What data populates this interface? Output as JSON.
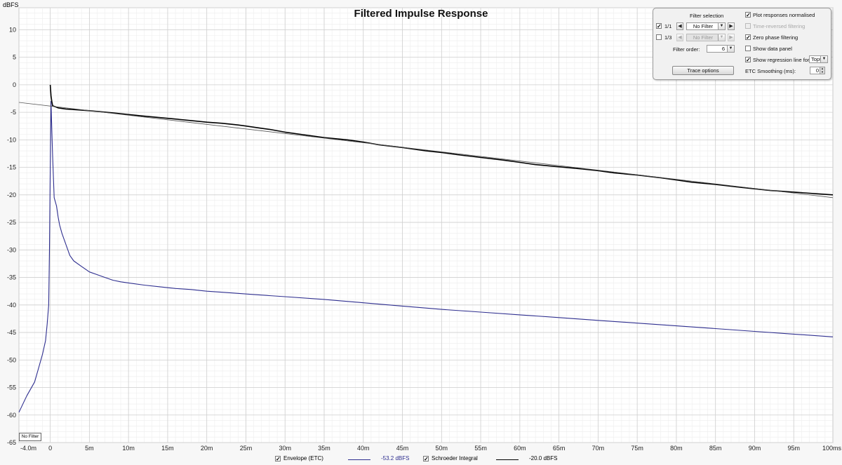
{
  "chart_data": {
    "type": "line",
    "title": "Filtered Impulse Response",
    "ylabel": "dBFS",
    "xlabel": "",
    "xlim": [
      -4.0,
      100
    ],
    "ylim": [
      -65,
      14
    ],
    "grid": true,
    "x_tick_labels": [
      "-4.0m",
      "0",
      "5m",
      "10m",
      "15m",
      "20m",
      "25m",
      "30m",
      "35m",
      "40m",
      "45m",
      "50m",
      "55m",
      "60m",
      "65m",
      "70m",
      "75m",
      "80m",
      "85m",
      "90m",
      "95m",
      "100ms"
    ],
    "x_ticks": [
      -4.0,
      0,
      5,
      10,
      15,
      20,
      25,
      30,
      35,
      40,
      45,
      50,
      55,
      60,
      65,
      70,
      75,
      80,
      85,
      90,
      95,
      100
    ],
    "y_ticks": [
      10,
      5,
      0,
      -5,
      -10,
      -15,
      -20,
      -25,
      -30,
      -35,
      -40,
      -45,
      -50,
      -55,
      -60,
      -65
    ],
    "series": [
      {
        "name": "Envelope (ETC)",
        "color": "#2e2e8f",
        "x": [
          -4.0,
          -3.0,
          -2.0,
          -1.5,
          -1.0,
          -0.6,
          -0.4,
          -0.2,
          -0.1,
          0.0,
          0.1,
          0.2,
          0.3,
          0.5,
          0.8,
          1.0,
          1.2,
          1.5,
          2.0,
          2.5,
          3.0,
          4.0,
          5.0,
          6.0,
          7.0,
          8.0,
          9.0,
          10.0,
          12.0,
          14.0,
          16.0,
          18.0,
          20.0,
          22.0,
          24.0,
          26.0,
          28.0,
          30.0,
          35.0,
          40.0,
          45.0,
          50.0,
          55.0,
          60.0,
          65.0,
          70.0,
          75.0,
          80.0,
          85.0,
          90.0,
          95.0,
          100.0
        ],
        "y": [
          -59.5,
          -56.5,
          -54.0,
          -51.5,
          -49.0,
          -46.5,
          -43.5,
          -40.0,
          -30.0,
          -15.5,
          -3.0,
          -8.0,
          -13.0,
          -20.5,
          -22.0,
          -24.0,
          -25.5,
          -27.0,
          -29.0,
          -31.0,
          -32.0,
          -33.0,
          -34.0,
          -34.5,
          -35.0,
          -35.5,
          -35.8,
          -36.0,
          -36.4,
          -36.7,
          -37.0,
          -37.2,
          -37.5,
          -37.7,
          -37.9,
          -38.1,
          -38.3,
          -38.5,
          -39.0,
          -39.6,
          -40.2,
          -40.8,
          -41.3,
          -41.8,
          -42.3,
          -42.8,
          -43.3,
          -43.8,
          -44.3,
          -44.8,
          -45.3,
          -45.8
        ],
        "legend_value": "-53.2 dBFS"
      },
      {
        "name": "Schroeder Integral",
        "color": "#000000",
        "x": [
          0.0,
          0.1,
          0.2,
          0.3,
          1.0,
          2.0,
          5.0,
          8.0,
          10.0,
          12.0,
          15.0,
          18.0,
          20.0,
          22.0,
          24.0,
          25.0,
          26.0,
          27.0,
          28.0,
          30.0,
          32.0,
          35.0,
          38.0,
          40.0,
          42.0,
          45.0,
          48.0,
          50.0,
          52.0,
          55.0,
          58.0,
          60.0,
          62.0,
          65.0,
          68.0,
          70.0,
          72.0,
          75.0,
          78.0,
          80.0,
          82.0,
          85.0,
          88.0,
          90.0,
          92.0,
          95.0,
          96.0,
          98.0,
          100.0
        ],
        "y": [
          0.0,
          -2.0,
          -3.0,
          -3.8,
          -4.2,
          -4.4,
          -4.7,
          -5.1,
          -5.4,
          -5.7,
          -6.1,
          -6.5,
          -6.8,
          -7.0,
          -7.3,
          -7.5,
          -7.7,
          -7.9,
          -8.1,
          -8.6,
          -9.0,
          -9.6,
          -10.0,
          -10.4,
          -10.9,
          -11.4,
          -12.0,
          -12.3,
          -12.7,
          -13.2,
          -13.7,
          -14.1,
          -14.5,
          -14.9,
          -15.3,
          -15.6,
          -16.0,
          -16.4,
          -16.9,
          -17.3,
          -17.7,
          -18.1,
          -18.6,
          -18.9,
          -19.2,
          -19.5,
          -19.6,
          -19.8,
          -20.0
        ],
        "legend_value": "-20.0 dBFS"
      },
      {
        "name": "Regression line",
        "color": "#555555",
        "x": [
          -4.0,
          100.0
        ],
        "y": [
          -3.2,
          -20.5
        ]
      }
    ]
  },
  "badge": {
    "label": "No Filter"
  },
  "legend": {
    "envelope": {
      "label": "Envelope (ETC)",
      "value": "-53.2 dBFS",
      "color": "#2e2e8f",
      "checked": true
    },
    "schroeder": {
      "label": "Schroeder Integral",
      "value": "-20.0 dBFS",
      "color": "#000000",
      "checked": true
    }
  },
  "controls": {
    "filter_selection_label": "Filter selection",
    "row1": {
      "checked": true,
      "band": "1/1",
      "value": "No Filter"
    },
    "row2": {
      "checked": false,
      "band": "1/3",
      "value": "No Filter"
    },
    "filter_order_label": "Filter order:",
    "filter_order_value": "6",
    "trace_options_label": "Trace options",
    "plot_normalised": {
      "label": "Plot responses normalised",
      "checked": true
    },
    "time_reversed": {
      "label": "Time-reversed filtering",
      "checked": false,
      "disabled": true
    },
    "zero_phase": {
      "label": "Zero phase filtering",
      "checked": true
    },
    "show_data_panel": {
      "label": "Show data panel",
      "checked": false
    },
    "regression": {
      "label": "Show regression line for:",
      "checked": true,
      "value": "Topt"
    },
    "etc_smoothing_label": "ETC Smoothing (ms):",
    "etc_smoothing_value": "0",
    "check_mark": "✓"
  }
}
